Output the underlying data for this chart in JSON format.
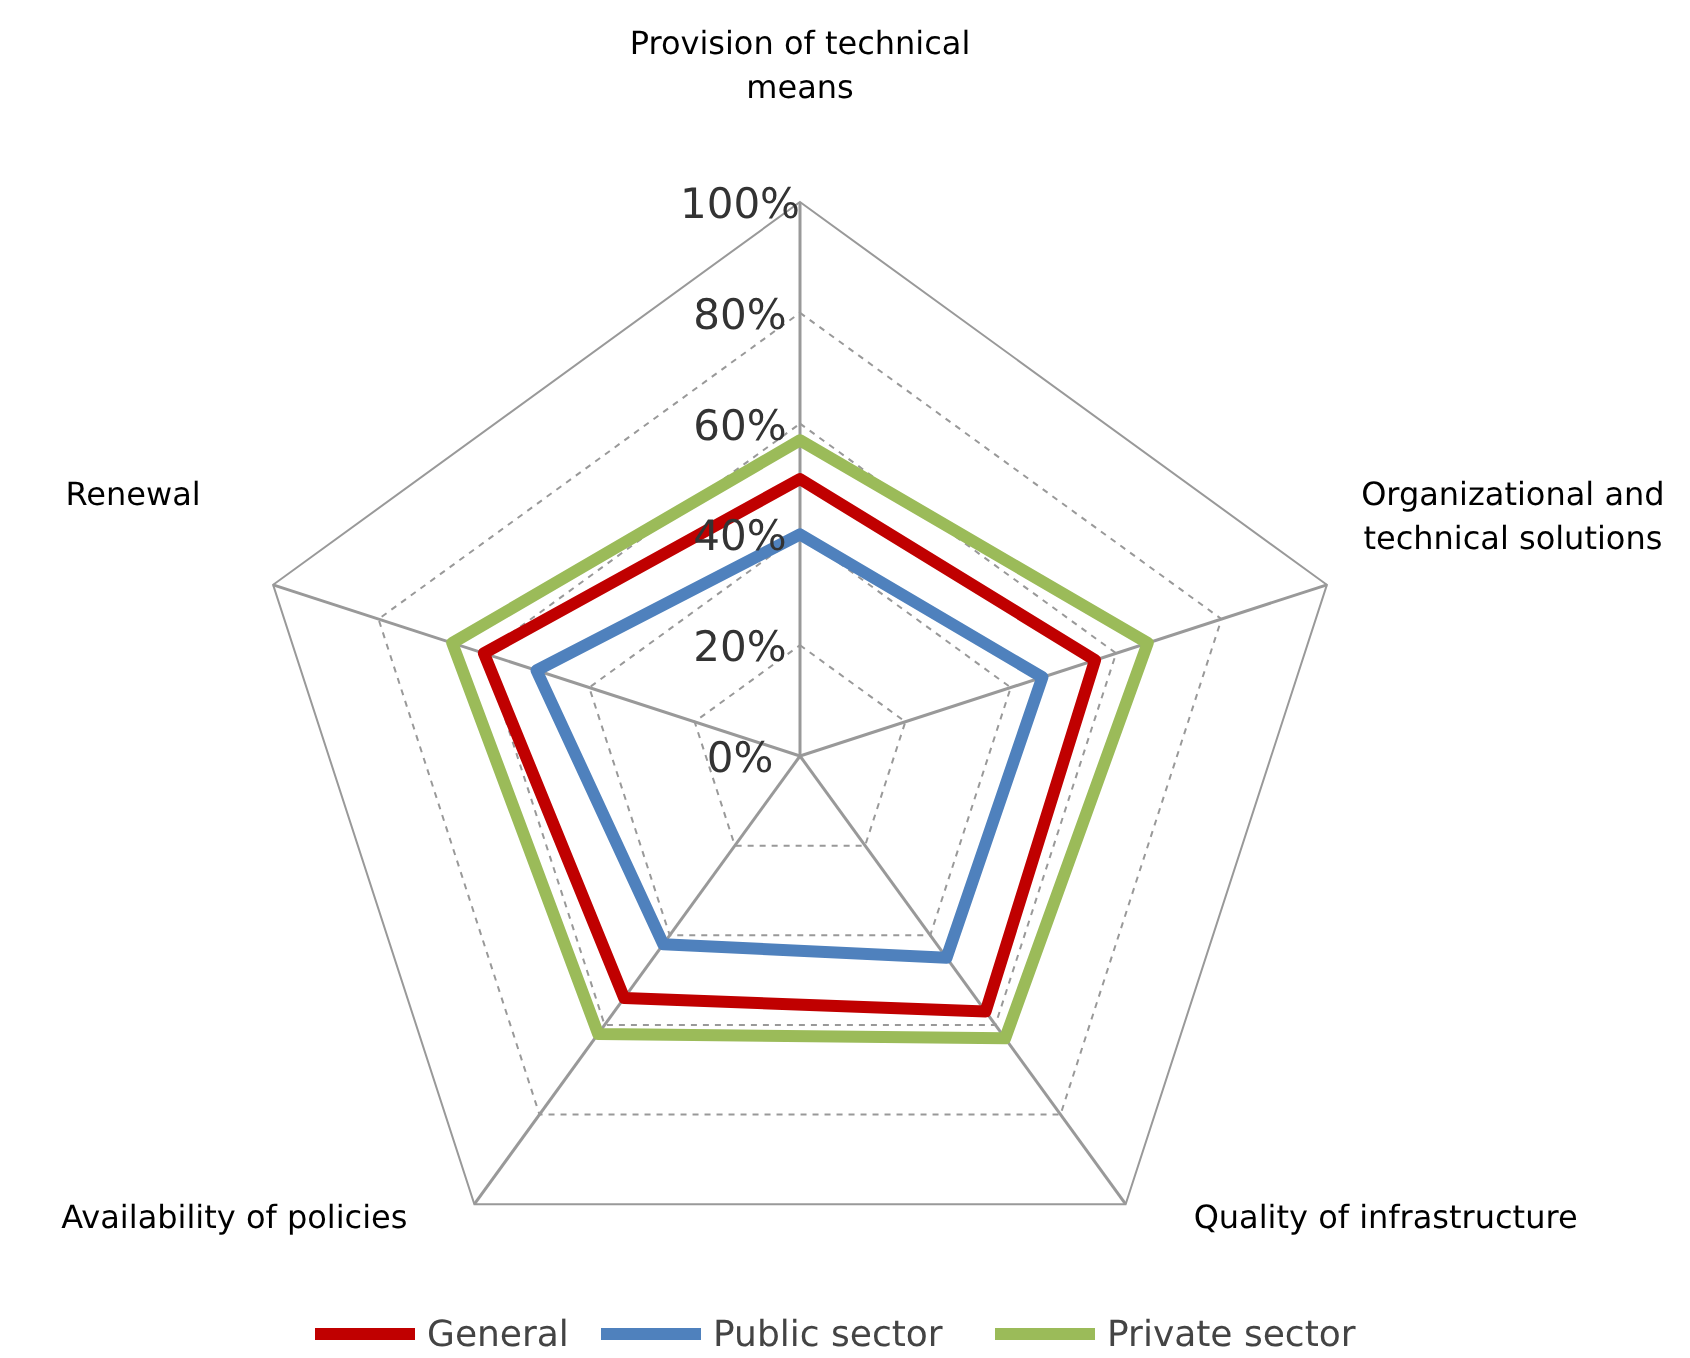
{
  "chart_data": {
    "type": "radar",
    "categories": [
      "Provision of technical means",
      "Organizational and technical solutions",
      "Quality of infrastructure",
      "Availability of policies",
      "Renewal"
    ],
    "series": [
      {
        "name": "General",
        "color": "#c00000",
        "values": [
          50,
          56,
          57,
          54,
          60
        ]
      },
      {
        "name": "Public sector",
        "color": "#4f81bd",
        "values": [
          40,
          46,
          45,
          42,
          50
        ]
      },
      {
        "name": "Private sector",
        "color": "#9bbb59",
        "values": [
          57,
          66,
          63,
          62,
          66
        ]
      }
    ],
    "ylim": [
      0,
      100
    ],
    "yticks": [
      {
        "value": 0,
        "label": "0%"
      },
      {
        "value": 20,
        "label": "20%"
      },
      {
        "value": 40,
        "label": "40%"
      },
      {
        "value": 60,
        "label": "60%"
      },
      {
        "value": 80,
        "label": "80%"
      },
      {
        "value": 100,
        "label": "100%"
      }
    ],
    "grid": true,
    "legend": "bottom"
  }
}
